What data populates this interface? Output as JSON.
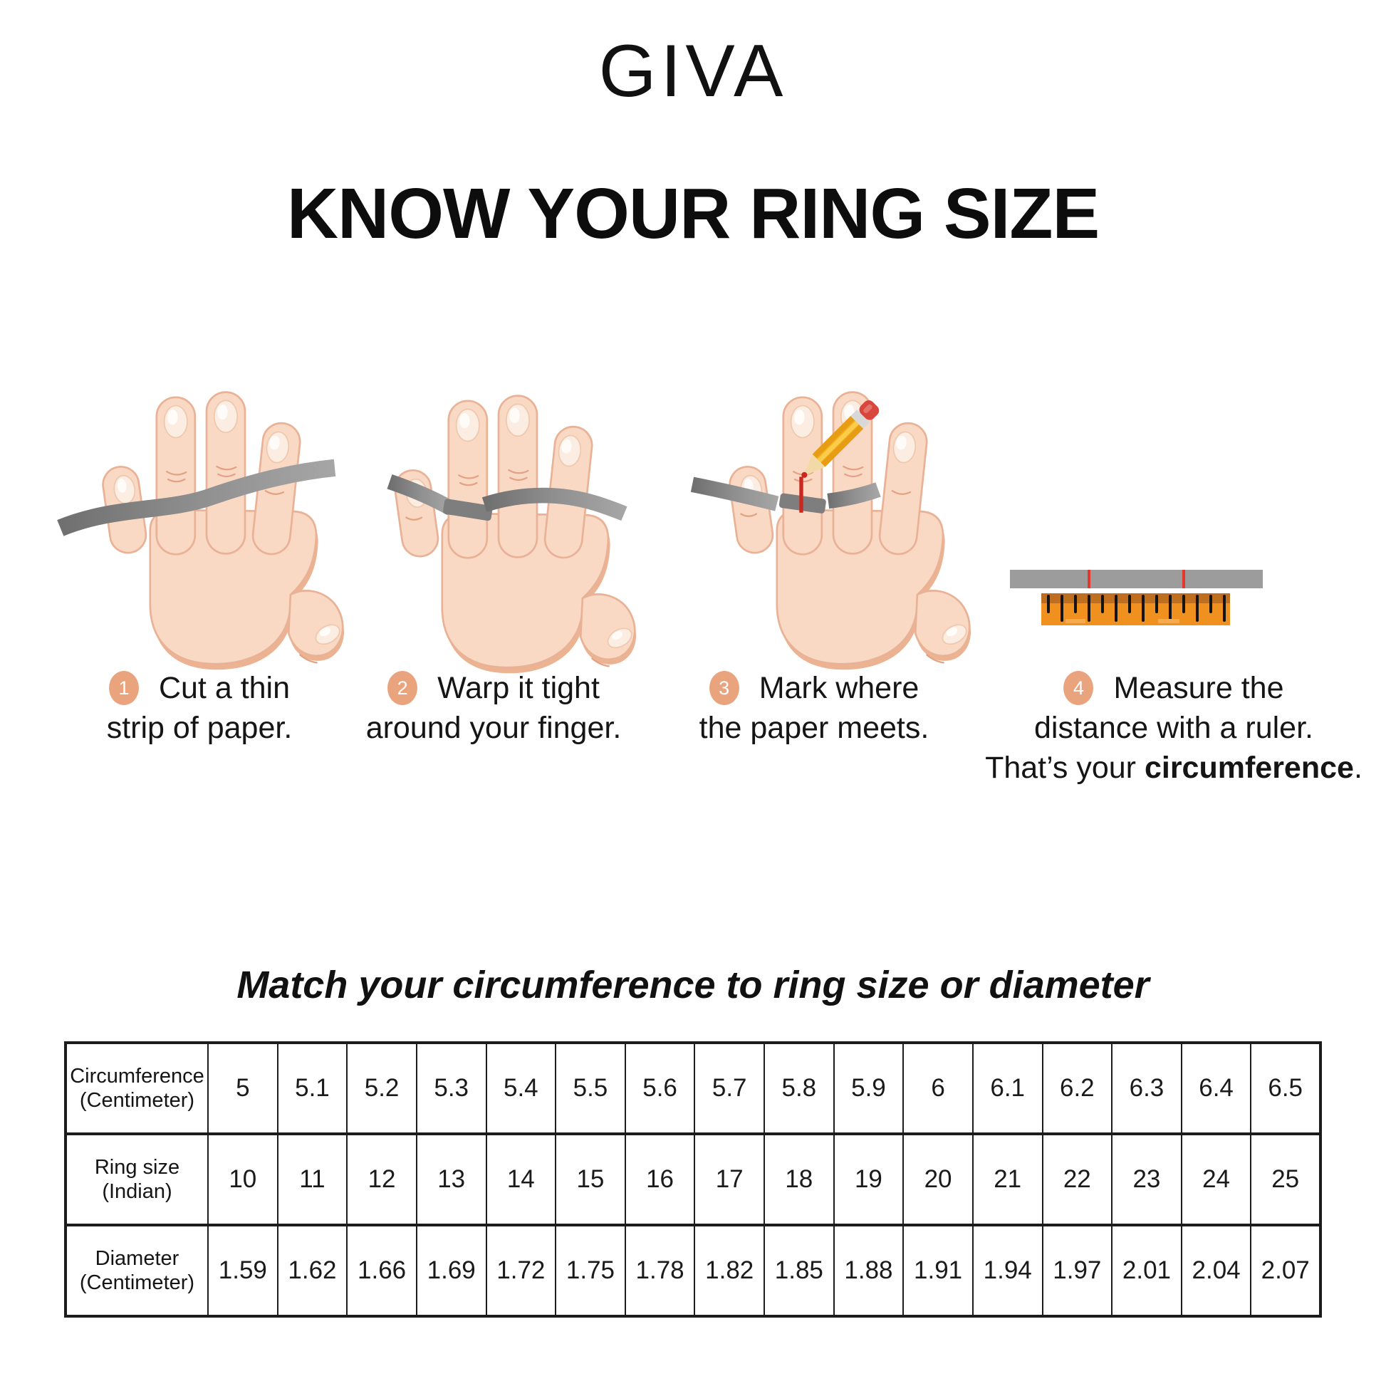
{
  "brand": "GIVA",
  "title": "KNOW YOUR RING SIZE",
  "steps": [
    {
      "number": "1",
      "line1": "Cut a thin",
      "line2": "strip of paper."
    },
    {
      "number": "2",
      "line1": "Warp it tight",
      "line2": "around your finger."
    },
    {
      "number": "3",
      "line1": "Mark where",
      "line2": "the paper meets."
    },
    {
      "number": "4",
      "line1": "Measure the",
      "line2": "distance with a ruler.",
      "line3_prefix": "That’s your ",
      "line3_bold": "circumference",
      "line3_suffix": "."
    }
  ],
  "illustrations": {
    "step1": "hand-with-paper-strip",
    "step2": "hand-with-paper-wrapped-around-finger",
    "step3": "hand-with-pencil-marking-paper",
    "step4": "paper-strip-measured-with-ruler"
  },
  "table_section": {
    "title": "Match your circumference to ring size or diameter",
    "rows": [
      {
        "label_line1": "Circumference",
        "label_line2": "(Centimeter)",
        "values": [
          "5",
          "5.1",
          "5.2",
          "5.3",
          "5.4",
          "5.5",
          "5.6",
          "5.7",
          "5.8",
          "5.9",
          "6",
          "6.1",
          "6.2",
          "6.3",
          "6.4",
          "6.5"
        ]
      },
      {
        "label_line1": "Ring size",
        "label_line2": "(Indian)",
        "values": [
          "10",
          "11",
          "12",
          "13",
          "14",
          "15",
          "16",
          "17",
          "18",
          "19",
          "20",
          "21",
          "22",
          "23",
          "24",
          "25"
        ]
      },
      {
        "label_line1": "Diameter",
        "label_line2": "(Centimeter)",
        "values": [
          "1.59",
          "1.62",
          "1.66",
          "1.69",
          "1.72",
          "1.75",
          "1.78",
          "1.82",
          "1.85",
          "1.88",
          "1.91",
          "1.94",
          "1.97",
          "2.01",
          "2.04",
          "2.07"
        ]
      }
    ]
  },
  "colors": {
    "badge": "#E9A47E",
    "skin": "#F9D9C4",
    "skin_outline": "#E9B296",
    "paper_strip_gray": "#8C8C8C",
    "ruler_orange": "#F0901E",
    "ruler_top_band": "#BE6E1E",
    "mark_red": "#C8281E",
    "pencil_yellow": "#F5B21D",
    "eraser_red": "#D8473E",
    "text": "#151515"
  }
}
